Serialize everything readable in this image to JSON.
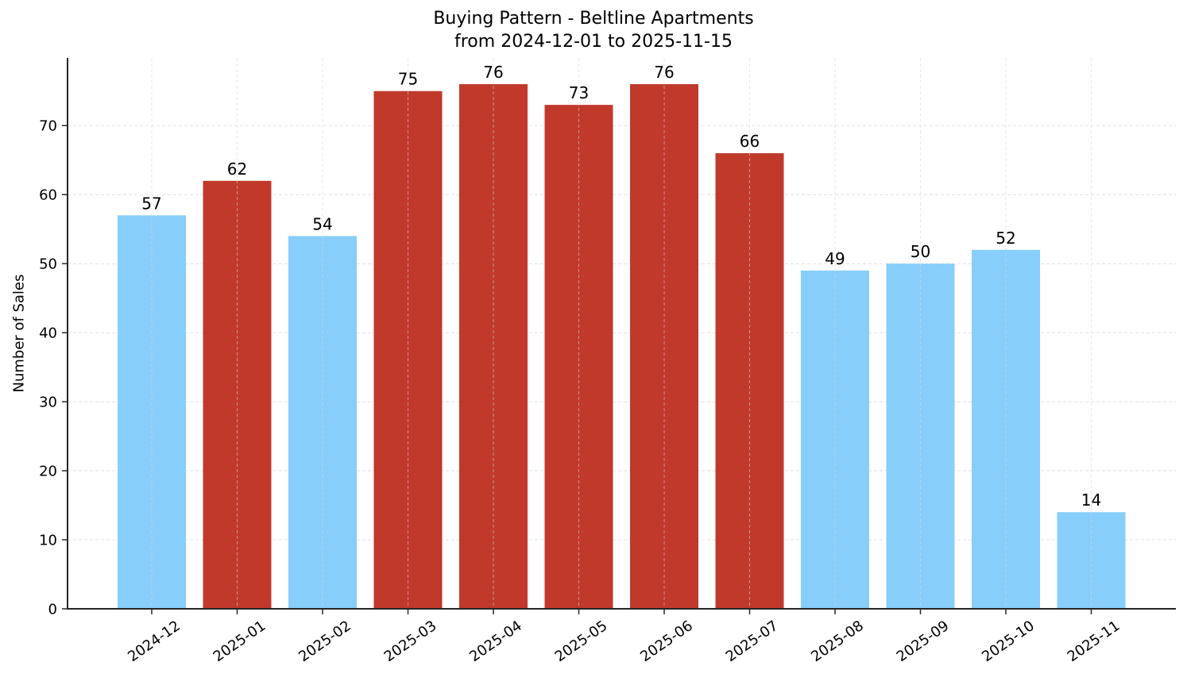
{
  "chart": {
    "title_line1": "Buying Pattern - Beltline Apartments",
    "title_line2": "from 2024-12-01 to 2025-11-15",
    "ylabel": "Number of Sales",
    "colors": {
      "high": "#c0392b",
      "low": "#87cefa",
      "axis": "#262626",
      "grid": "#d9d9d9"
    }
  },
  "chart_data": {
    "type": "bar",
    "title": "Buying Pattern - Beltline Apartments\nfrom 2024-12-01 to 2025-11-15",
    "xlabel": "",
    "ylabel": "Number of Sales",
    "categories": [
      "2024-12",
      "2025-01",
      "2025-02",
      "2025-03",
      "2025-04",
      "2025-05",
      "2025-06",
      "2025-07",
      "2025-08",
      "2025-09",
      "2025-10",
      "2025-11"
    ],
    "values": [
      57,
      62,
      54,
      75,
      76,
      73,
      76,
      66,
      49,
      50,
      52,
      14
    ],
    "bar_colors": [
      "#87cefa",
      "#c0392b",
      "#87cefa",
      "#c0392b",
      "#c0392b",
      "#c0392b",
      "#c0392b",
      "#c0392b",
      "#87cefa",
      "#87cefa",
      "#87cefa",
      "#87cefa"
    ],
    "yticks": [
      0,
      10,
      20,
      30,
      40,
      50,
      60,
      70
    ],
    "ylim": [
      0,
      79.8
    ],
    "grid": true,
    "data_labels": true,
    "legend": null,
    "xtick_rotation": 35
  }
}
